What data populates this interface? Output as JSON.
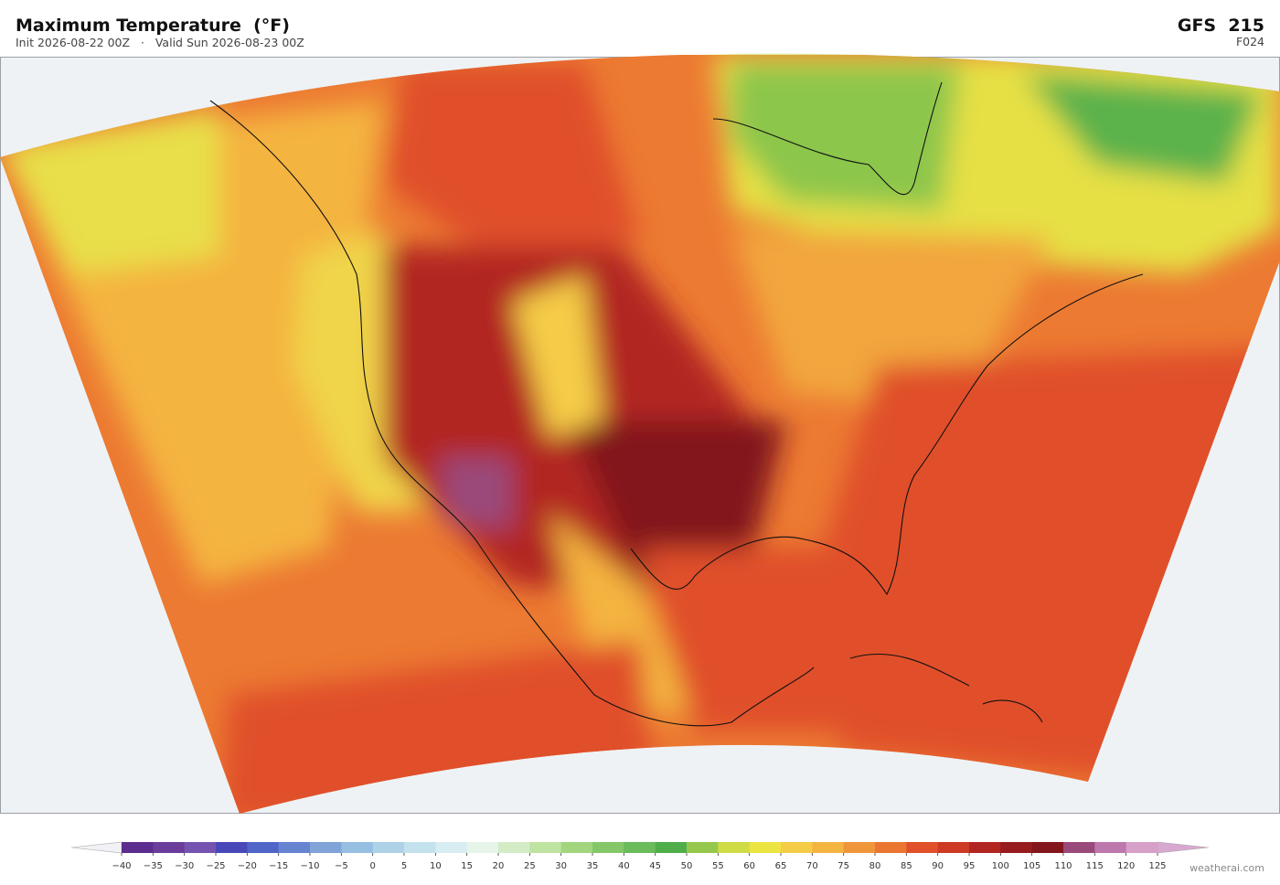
{
  "header": {
    "title": "Maximum Temperature  (°F)",
    "subtitle": "Init 2026-08-22 00Z   ·   Valid Sun 2026-08-23 00Z",
    "model": "GFS  215",
    "forecast_hour": "F024"
  },
  "colorbar": {
    "ticks": [
      {
        "value": -40,
        "label": "−40"
      },
      {
        "value": -35,
        "label": "−35"
      },
      {
        "value": -30,
        "label": "−30"
      },
      {
        "value": -25,
        "label": "−25"
      },
      {
        "value": -20,
        "label": "−20"
      },
      {
        "value": -15,
        "label": "−15"
      },
      {
        "value": -10,
        "label": "−10"
      },
      {
        "value": -5,
        "label": "−5"
      },
      0,
      5,
      10,
      15,
      20,
      25,
      30,
      35,
      40,
      45,
      50,
      55,
      60,
      65,
      70,
      75,
      80,
      85,
      90,
      95,
      100,
      105,
      110,
      115,
      120,
      125
    ],
    "colors": [
      "#5b2d8e",
      "#6a3d9a",
      "#7454b0",
      "#4848b8",
      "#4f66c8",
      "#6684d0",
      "#80a4d8",
      "#97bfe2",
      "#aed2e8",
      "#c4e2ee",
      "#d8edf2",
      "#e6f4ea",
      "#d4ecc6",
      "#bfe3a0",
      "#a2d57e",
      "#84c768",
      "#69bb5c",
      "#4fae4a",
      "#95c84c",
      "#d0dc46",
      "#ece440",
      "#f5cc46",
      "#f4b440",
      "#f0963a",
      "#ea7632",
      "#e0502a",
      "#cc3a24",
      "#b22622",
      "#961c1e",
      "#82161c",
      "#9a4a7a",
      "#bd78ae",
      "#d6a0c8"
    ],
    "under_color": "#f2f2f6",
    "over_color": "#d8a8d0"
  },
  "credit": "weatherai.com"
}
